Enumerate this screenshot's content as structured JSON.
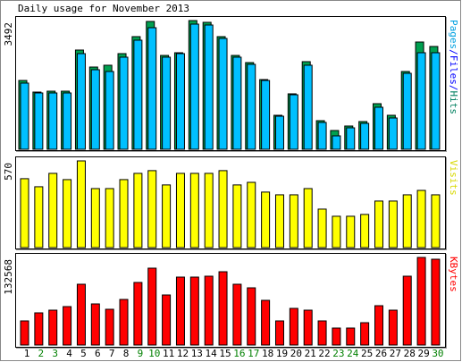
{
  "chart_data": {
    "type": "bar",
    "title": "Daily usage for November 2013",
    "categories": [
      "1",
      "2",
      "3",
      "4",
      "5",
      "6",
      "7",
      "8",
      "9",
      "10",
      "11",
      "12",
      "13",
      "14",
      "15",
      "16",
      "17",
      "18",
      "19",
      "20",
      "21",
      "22",
      "23",
      "24",
      "25",
      "26",
      "27",
      "28",
      "29",
      "30"
    ],
    "category_color": "#000000",
    "highlight_color": "#008000",
    "highlight": [
      1,
      2,
      8,
      9,
      15,
      16,
      22,
      23,
      29
    ],
    "panels": [
      {
        "ylim": [
          0,
          3492
        ],
        "yticks": [
          3492
        ],
        "axis_label": [
          {
            "text": "Pages",
            "color": "#00a0e0"
          },
          {
            "text": "/",
            "color": "#0000ff"
          },
          {
            "text": "Files",
            "color": "#0000ff"
          },
          {
            "text": "/",
            "color": "#0000ff"
          },
          {
            "text": "Hits",
            "color": "#008060"
          }
        ],
        "series": [
          {
            "name": "Hits",
            "color": "#00a050",
            "values": [
              1867,
              1552,
              1576,
              1576,
              2692,
              2231,
              2280,
              2595,
              3056,
              3468,
              2546,
              2619,
              3492,
              3444,
              3056,
              2546,
              2352,
              1891,
              922,
              1504,
              2377,
              776,
              509,
              631,
              752,
              1237,
              922,
              2110,
              2910,
              2789
            ]
          },
          {
            "name": "Files",
            "color": "#00c0ff",
            "values": [
              1795,
              1528,
              1528,
              1528,
              2595,
              2158,
              2110,
              2498,
              2959,
              3298,
              2498,
              2595,
              3395,
              3371,
              3007,
              2498,
              2304,
              1867,
              897,
              1479,
              2280,
              728,
              364,
              582,
              703,
              1140,
              849,
              2061,
              2619,
              2619
            ]
          }
        ]
      },
      {
        "ylim": [
          0,
          570
        ],
        "yticks": [
          570
        ],
        "axis_label": [
          {
            "text": "Visits",
            "color": "#d8d800"
          }
        ],
        "series": [
          {
            "name": "Visits",
            "color": "#ffff00",
            "values": [
              453,
              400,
              488,
              447,
              570,
              388,
              388,
              447,
              488,
              506,
              412,
              488,
              488,
              488,
              506,
              412,
              429,
              365,
              347,
              347,
              388,
              253,
              206,
              206,
              218,
              306,
              306,
              347,
              376,
              347
            ]
          }
        ]
      },
      {
        "ylim": [
          0,
          132568
        ],
        "yticks": [
          132568
        ],
        "axis_label": [
          {
            "text": "KBytes",
            "color": "#ff0000"
          }
        ],
        "series": [
          {
            "name": "KBytes",
            "color": "#ff0000",
            "values": [
              36523,
              48697,
              52755,
              58166,
              91984,
              62224,
              54108,
              68988,
              94690,
              116332,
              75751,
              102805,
              102805,
              104158,
              110922,
              91984,
              86573,
              67635,
              36523,
              55461,
              52755,
              36523,
              25701,
              25701,
              33818,
              59519,
              52755,
              104158,
              132568,
              129863
            ]
          }
        ]
      }
    ]
  }
}
